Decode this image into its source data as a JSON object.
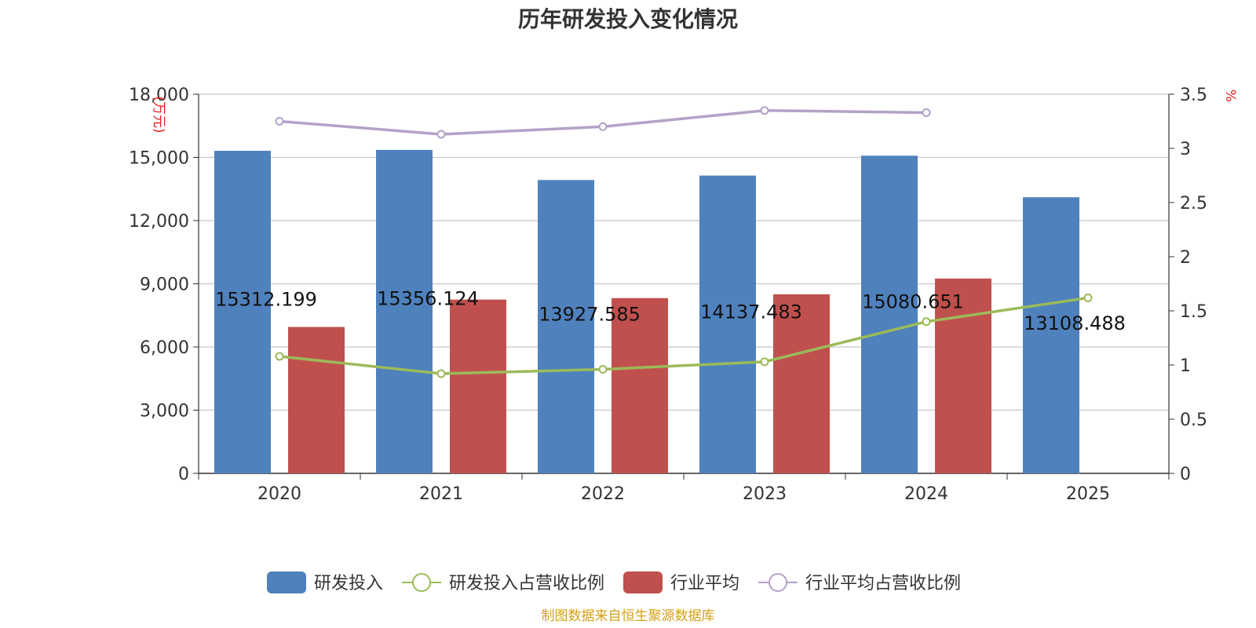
{
  "chart_data": {
    "type": "bar",
    "title": "历年研发投入变化情况",
    "categories": [
      "2020",
      "2021",
      "2022",
      "2023",
      "2024",
      "2025"
    ],
    "y_left": {
      "unit": "(万元)",
      "ylim": [
        0,
        18000
      ],
      "ticks": [
        "0",
        "3,000",
        "6,000",
        "9,000",
        "12,000",
        "15,000",
        "18,000"
      ]
    },
    "y_right": {
      "unit": "%",
      "ylim": [
        0,
        3.5
      ],
      "ticks": [
        "0",
        "0.5",
        "1",
        "1.5",
        "2",
        "2.5",
        "3",
        "3.5"
      ]
    },
    "series": [
      {
        "name": "研发投入",
        "kind": "bar",
        "axis": "left",
        "color": "#4f81bd",
        "values": [
          15312.199,
          15356.124,
          13927.585,
          14137.483,
          15080.651,
          13108.488
        ],
        "labels": [
          "15312.199",
          "15356.124",
          "13927.585",
          "14137.483",
          "15080.651",
          "13108.488"
        ]
      },
      {
        "name": "研发投入占营收比例",
        "kind": "line",
        "axis": "right",
        "color": "#9bbb59",
        "values": [
          1.08,
          0.92,
          0.96,
          1.03,
          1.4,
          1.62
        ]
      },
      {
        "name": "行业平均",
        "kind": "bar",
        "axis": "left",
        "color": "#c0504d",
        "values": [
          6950,
          8250,
          8320,
          8500,
          9250,
          null
        ]
      },
      {
        "name": "行业平均占营收比例",
        "kind": "line",
        "axis": "right",
        "color": "#b3a2c7",
        "values": [
          3.25,
          3.13,
          3.2,
          3.35,
          3.33,
          null
        ]
      }
    ],
    "grid": true,
    "legend_position": "bottom"
  },
  "footer": {
    "source": "制图数据来自恒生聚源数据库"
  }
}
